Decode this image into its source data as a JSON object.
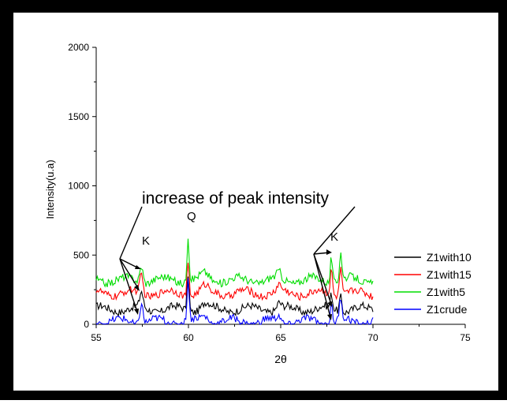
{
  "chart_data": {
    "type": "line",
    "xlabel": "2θ",
    "ylabel": "Intensity(u.a)",
    "xlim": [
      55,
      75
    ],
    "ylim": [
      0,
      2000
    ],
    "x_ticks": [
      "55",
      "60",
      "65",
      "70",
      "75"
    ],
    "y_ticks": [
      "0",
      "500",
      "1000",
      "1500",
      "2000"
    ],
    "grid": false,
    "legend_position": "right",
    "annotations": {
      "main": "increase of peak intensity",
      "peak_left": "K",
      "peak_center": "Q",
      "peak_right": "K"
    },
    "series": [
      {
        "name": "Z1with10",
        "color": "#000000",
        "offset": 110,
        "peak_left": 220,
        "peak_center": 380,
        "peak_right": 220
      },
      {
        "name": "Z1with15",
        "color": "#ff0000",
        "offset": 225,
        "peak_left": 355,
        "peak_center": 465,
        "peak_right": 430
      },
      {
        "name": "Z1with5",
        "color": "#00dd00",
        "offset": 320,
        "peak_left": 440,
        "peak_center": 655,
        "peak_right": 530
      },
      {
        "name": "Z1crude",
        "color": "#0000ff",
        "offset": 20,
        "peak_left": 170,
        "peak_center": 320,
        "peak_right": 180
      }
    ]
  }
}
